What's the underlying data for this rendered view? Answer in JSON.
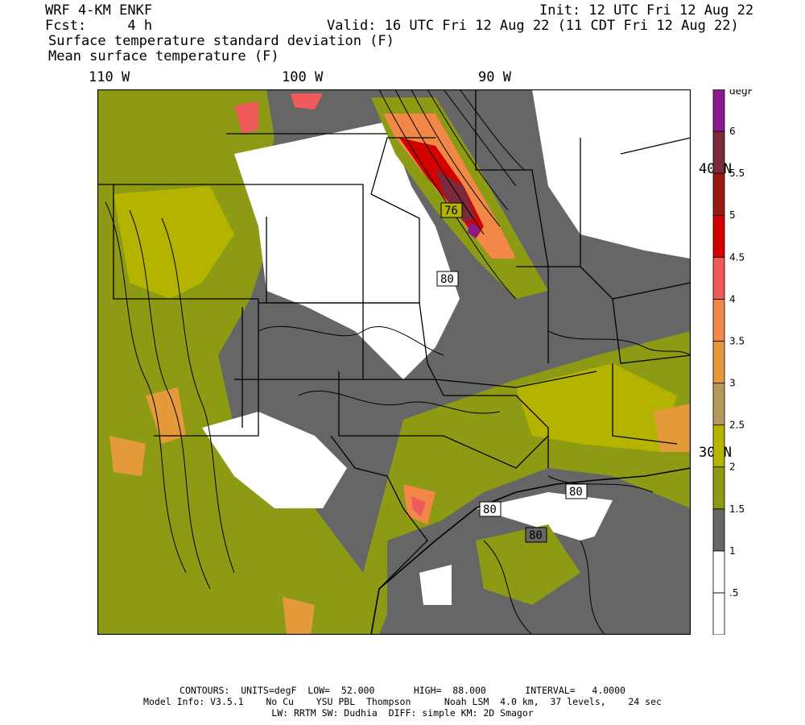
{
  "header": {
    "model": "WRF 4-KM ENKF",
    "fcst": "Fcst:     4 h",
    "init": "Init: 12 UTC Fri 12 Aug 22",
    "valid": "Valid: 16 UTC Fri 12 Aug 22 (11 CDT Fri 12 Aug 22)",
    "field1": "Surface temperature standard deviation (F)",
    "field2": "Mean surface temperature (F)"
  },
  "axes": {
    "lon_labels": [
      "110 W",
      "100 W",
      "90 W"
    ],
    "lat_labels": [
      "40 N",
      "30 N"
    ]
  },
  "legend": {
    "unit": "degF",
    "colors": [
      "#ffffff",
      "#ffffff",
      "#666666",
      "#8c9a14",
      "#b4b400",
      "#b39a5a",
      "#e49a3a",
      "#f28848",
      "#f05a5a",
      "#d40000",
      "#9a1a10",
      "#7a2a3a",
      "#8a1a8a"
    ],
    "labels": [
      ".5",
      "1",
      "1.5",
      "2",
      "2.5",
      "3",
      "3.5",
      "4",
      "4.5",
      "5",
      "5.5",
      "6"
    ]
  },
  "contour_labels": [
    "76",
    "80",
    "80",
    "80",
    "80"
  ],
  "footer": {
    "line1": "CONTOURS:  UNITS=degF  LOW=  52.000       HIGH=  88.000       INTERVAL=   4.0000",
    "line2": "Model Info: V3.5.1    No Cu    YSU PBL  Thompson      Noah LSM  4.0 km,  37 levels,    24 sec",
    "line3": "LW: RRTM SW: Dudhia  DIFF: simple KM: 2D Smagor"
  }
}
